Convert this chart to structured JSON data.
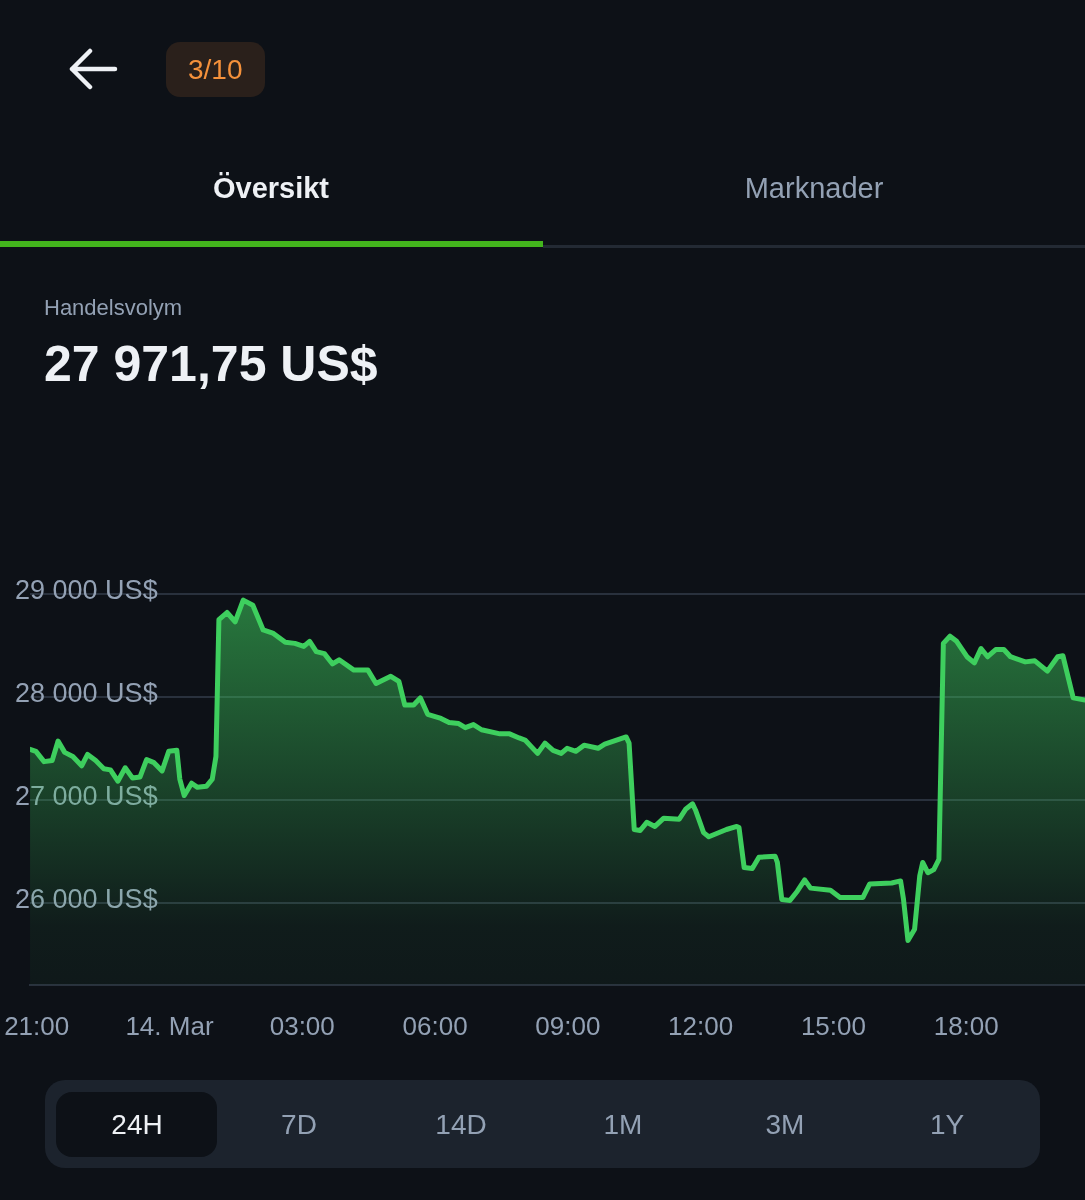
{
  "chart_data": {
    "type": "area",
    "title": "Handelsvolym",
    "subtitle": "27 971,75 US$",
    "annotations": [
      "3/10",
      "Översikt",
      "Marknader",
      "24H",
      "7D",
      "14D",
      "1M",
      "3M",
      "1Y"
    ],
    "x": [
      "--03-13T20:51",
      "--03-13T20:59",
      "--03-13T21:10",
      "--03-13T21:21",
      "--03-13T21:29",
      "--03-13T21:38",
      "--03-13T21:49",
      "--03-13T22:01",
      "--03-13T22:09",
      "--03-13T22:20",
      "--03-13T22:31",
      "--03-13T22:40",
      "--03-13T22:50",
      "--03-13T23:00",
      "--03-13T23:10",
      "--03-13T23:20",
      "--03-13T23:29",
      "--03-13T23:39",
      "--03-13T23:50",
      "--03-13T23:59",
      "--03-14T00:10",
      "--03-14T00:14",
      "--03-14T00:20",
      "--03-14T00:30",
      "--03-14T00:38",
      "--03-14T00:50",
      "--03-14T00:58",
      "--03-14T01:03",
      "--03-14T01:07",
      "--03-14T01:18",
      "--03-14T01:29",
      "--03-14T01:40",
      "--03-14T01:53",
      "--03-14T02:07",
      "--03-14T02:20",
      "--03-14T02:37",
      "--03-14T02:50",
      "--03-14T03:02",
      "--03-14T03:10",
      "--03-14T03:19",
      "--03-14T03:30",
      "--03-14T03:41",
      "--03-14T03:50",
      "--03-14T04:10",
      "--03-14T04:29",
      "--03-14T04:40",
      "--03-14T05:00",
      "--03-14T05:11",
      "--03-14T05:19",
      "--03-14T05:31",
      "--03-14T05:40",
      "--03-14T05:50",
      "--03-14T06:08",
      "--03-14T06:19",
      "--03-14T06:32",
      "--03-14T06:41",
      "--03-14T06:52",
      "--03-14T07:03",
      "--03-14T07:28",
      "--03-14T07:41",
      "--03-14T07:54",
      "--03-14T08:02",
      "--03-14T08:19",
      "--03-14T08:29",
      "--03-14T08:40",
      "--03-14T08:51",
      "--03-14T08:59",
      "--03-14T09:11",
      "--03-14T09:22",
      "--03-14T09:41",
      "--03-14T09:50",
      "--03-14T10:19",
      "--03-14T10:23",
      "--03-14T10:30",
      "--03-14T10:38",
      "--03-14T10:47",
      "--03-14T10:58",
      "--03-14T11:10",
      "--03-14T11:31",
      "--03-14T11:40",
      "--03-14T11:49",
      "--03-14T11:53",
      "--03-14T12:04",
      "--03-14T12:11",
      "--03-14T12:35",
      "--03-14T12:49",
      "--03-14T12:52",
      "--03-14T12:59",
      "--03-14T13:10",
      "--03-14T13:19",
      "--03-14T13:41",
      "--03-14T13:44",
      "--03-14T13:50",
      "--03-14T14:01",
      "--03-14T14:11",
      "--03-14T14:21",
      "--03-14T14:29",
      "--03-14T14:56",
      "--03-14T15:09",
      "--03-14T15:40",
      "--03-14T15:49",
      "--03-14T16:19",
      "--03-14T16:31",
      "--03-14T16:35",
      "--03-14T16:41",
      "--03-14T16:50",
      "--03-14T16:57",
      "--03-14T17:01",
      "--03-14T17:08",
      "--03-14T17:16",
      "--03-14T17:23",
      "--03-14T17:29",
      "--03-14T17:38",
      "--03-14T17:47",
      "--03-14T18:01",
      "--03-14T18:11",
      "--03-14T18:20",
      "--03-14T18:29",
      "--03-14T18:40",
      "--03-14T18:51",
      "--03-14T19:00",
      "--03-14T19:20",
      "--03-14T19:33",
      "--03-14T19:50",
      "--03-14T20:04",
      "--03-14T20:11",
      "--03-14T20:25",
      "--03-14T20:41"
    ],
    "values": [
      27490,
      27470,
      27370,
      27380,
      27570,
      27460,
      27420,
      27330,
      27440,
      27380,
      27300,
      27290,
      27180,
      27310,
      27210,
      27220,
      27390,
      27360,
      27280,
      27470,
      27480,
      27200,
      27040,
      27160,
      27120,
      27130,
      27200,
      27420,
      28750,
      28820,
      28730,
      28940,
      28890,
      28650,
      28620,
      28530,
      28520,
      28490,
      28540,
      28440,
      28420,
      28320,
      28360,
      28260,
      28260,
      28130,
      28200,
      28150,
      27920,
      27920,
      27990,
      27830,
      27790,
      27750,
      27740,
      27700,
      27730,
      27680,
      27640,
      27640,
      27600,
      27580,
      27450,
      27550,
      27480,
      27450,
      27500,
      27470,
      27530,
      27500,
      27540,
      27610,
      27550,
      26710,
      26700,
      26780,
      26740,
      26820,
      26810,
      26910,
      26960,
      26900,
      26680,
      26640,
      26710,
      26740,
      26730,
      26340,
      26330,
      26440,
      26450,
      26390,
      26030,
      26020,
      26110,
      26220,
      26140,
      26120,
      26050,
      26050,
      26180,
      26190,
      26210,
      26030,
      25630,
      25740,
      26260,
      26390,
      26290,
      26320,
      26420,
      28520,
      28590,
      28540,
      28390,
      28330,
      28470,
      28390,
      28460,
      28460,
      28390,
      28340,
      28350,
      28250,
      28390,
      28400,
      27990,
      27970
    ],
    "color": "#3ecf5e",
    "xlim": [
      "--03-13T20:51",
      "--03-14T20:41"
    ],
    "xticks": [
      {
        "value": "--03-13T21:00",
        "label": "21:00"
      },
      {
        "value": "--03-14",
        "label": "14. Mar"
      },
      {
        "value": "--03-14T03:00",
        "label": "03:00"
      },
      {
        "value": "--03-14T06:00",
        "label": "06:00"
      },
      {
        "value": "--03-14T09:00",
        "label": "09:00"
      },
      {
        "value": "--03-14T12:00",
        "label": "12:00"
      },
      {
        "value": "--03-14T15:00",
        "label": "15:00"
      },
      {
        "value": "--03-14T18:00",
        "label": "18:00"
      }
    ],
    "ylim": [
      25200,
      29000
    ],
    "yticks": [
      {
        "value": 26000,
        "label": "26 000 US$"
      },
      {
        "value": 27000,
        "label": "27 000 US$"
      },
      {
        "value": 28000,
        "label": "28 000 US$"
      },
      {
        "value": 29000,
        "label": "29 000 US$"
      }
    ],
    "grid": "y",
    "marker": "none",
    "line_style": "solid"
  }
}
